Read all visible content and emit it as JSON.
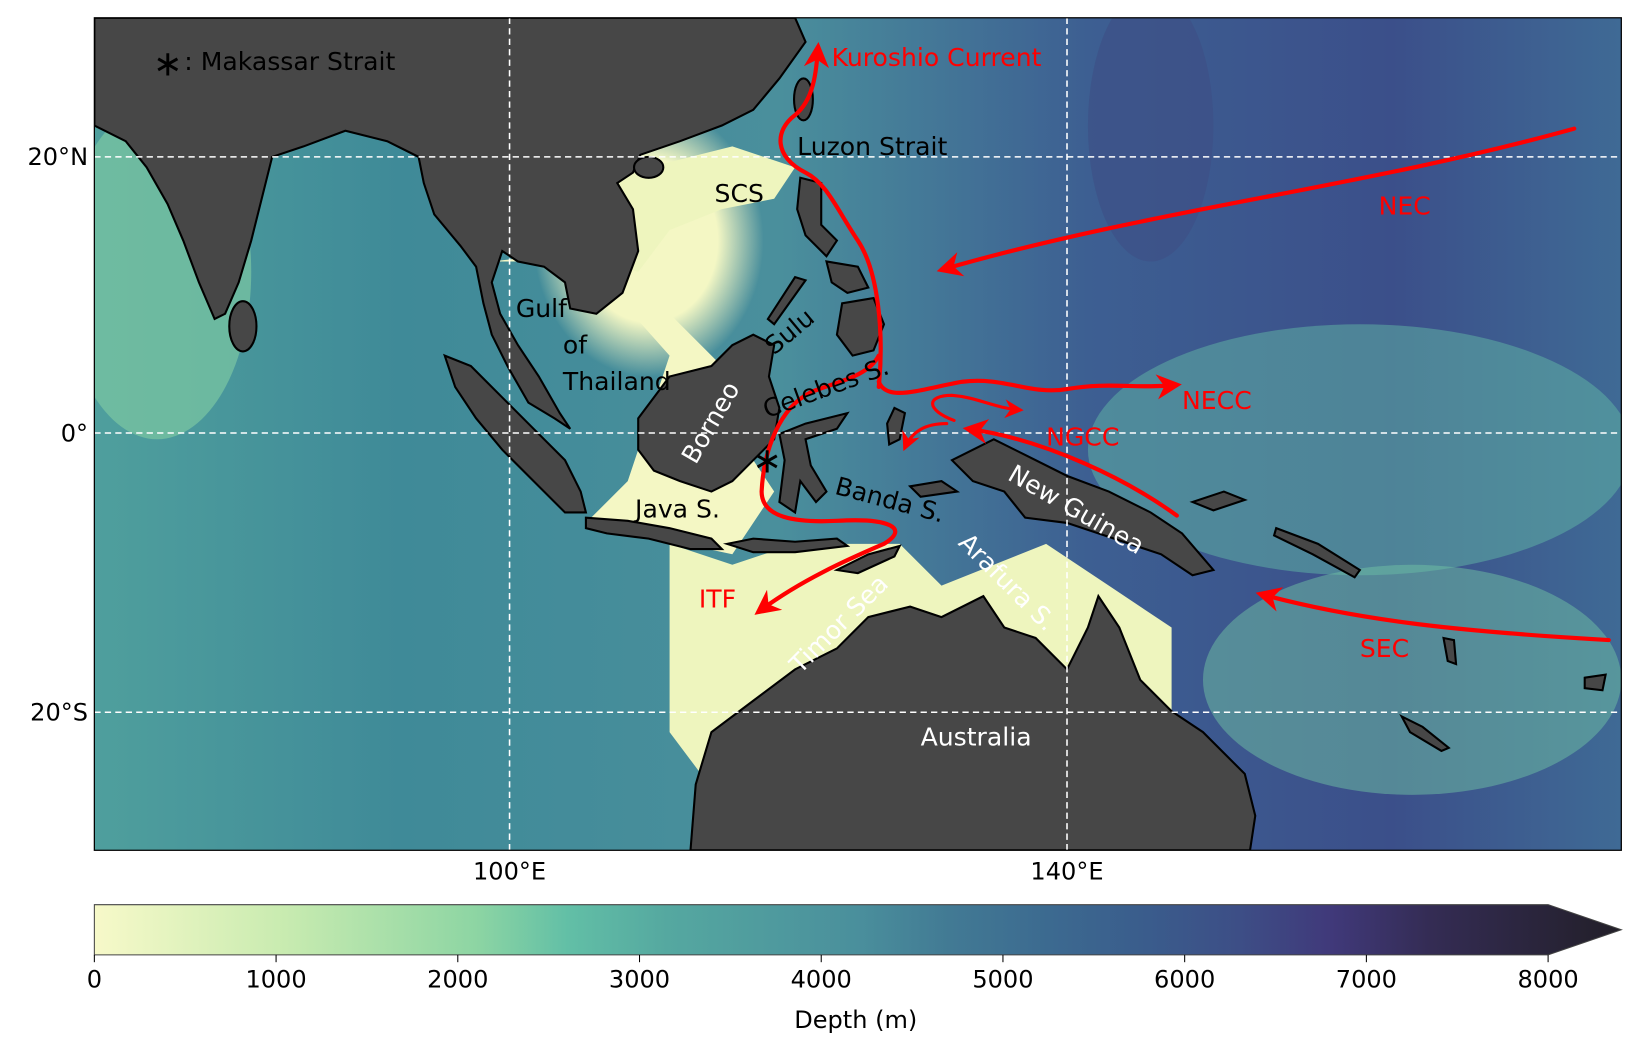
{
  "map": {
    "extent": {
      "lon": [
        70,
        180
      ],
      "lat": [
        -30,
        30
      ]
    },
    "legend_marker": "∗",
    "legend_text": ": Makassar Strait",
    "land_color": "#474747",
    "current_color": "#ff0000",
    "lat_ticks": [
      "20°N",
      "0°",
      "20°S"
    ],
    "lon_ticks": [
      "100°E",
      "140°E"
    ],
    "regions": {
      "luzon_strait": "Luzon Strait",
      "scs": "SCS",
      "gulf": "Gulf",
      "of": "of",
      "thailand": "Thailand",
      "sulu": "Sulu",
      "celebes": "Celebes S.",
      "borneo": "Borneo",
      "banda": "Banda S.",
      "java": "Java S.",
      "new_guinea": "New Guinea",
      "timor": "Timor Sea",
      "arafura": "Arafura S.",
      "australia": "Australia"
    },
    "currents": {
      "kuroshio": "Kuroshio Current",
      "nec": "NEC",
      "necc": "NECC",
      "ngcc": "NGCC",
      "itf": "ITF",
      "sec": "SEC"
    }
  },
  "colorbar": {
    "label": "Depth (m)",
    "ticks": [
      "0",
      "1000",
      "2000",
      "3000",
      "4000",
      "5000",
      "6000",
      "7000",
      "8000"
    ],
    "range": [
      0,
      8000
    ],
    "extend": "max",
    "colors": [
      "#f7f9c9",
      "#c8ebb0",
      "#8dd5a3",
      "#62bfa6",
      "#55a8a0",
      "#4a8f9c",
      "#427a94",
      "#3c6a90",
      "#3a5c8c",
      "#3d4e86",
      "#40397a",
      "#342c54",
      "#221f28"
    ]
  }
}
